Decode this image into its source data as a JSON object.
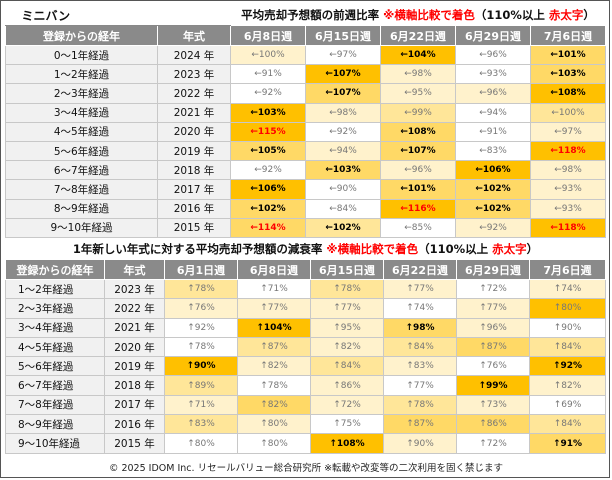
{
  "table1": {
    "name": "ミニバン",
    "title_main": "平均売却予想額の前週比率",
    "title_note": "※横軸比較で着色",
    "title_rule_open": "（110%以上",
    "title_rule_red": "赤太字",
    "title_rule_close": "）",
    "headers": [
      "登録からの経年",
      "年式",
      "6月8日週",
      "6月15日週",
      "6月22日週",
      "6月29日週",
      "7月6日週"
    ],
    "rows": [
      {
        "age": "0～1年経過",
        "year": "2024 年",
        "cells": [
          {
            "text": "←100%",
            "bold": false,
            "red": false,
            "bg": "#fff2cc"
          },
          {
            "text": "←97%",
            "bold": false,
            "red": false,
            "bg": "#ffffff"
          },
          {
            "text": "←104%",
            "bold": true,
            "red": false,
            "bg": "#ffc000"
          },
          {
            "text": "←96%",
            "bold": false,
            "red": false,
            "bg": "#ffffff"
          },
          {
            "text": "←101%",
            "bold": true,
            "red": false,
            "bg": "#ffd966"
          }
        ]
      },
      {
        "age": "1～2年経過",
        "year": "2023 年",
        "cells": [
          {
            "text": "←91%",
            "bold": false,
            "red": false,
            "bg": "#ffffff"
          },
          {
            "text": "←107%",
            "bold": true,
            "red": false,
            "bg": "#ffc000"
          },
          {
            "text": "←98%",
            "bold": false,
            "red": false,
            "bg": "#fff2cc"
          },
          {
            "text": "←93%",
            "bold": false,
            "red": false,
            "bg": "#ffffff"
          },
          {
            "text": "←103%",
            "bold": true,
            "red": false,
            "bg": "#ffd966"
          }
        ]
      },
      {
        "age": "2～3年経過",
        "year": "2022 年",
        "cells": [
          {
            "text": "←92%",
            "bold": false,
            "red": false,
            "bg": "#ffffff"
          },
          {
            "text": "←107%",
            "bold": true,
            "red": false,
            "bg": "#ffd966"
          },
          {
            "text": "←95%",
            "bold": false,
            "red": false,
            "bg": "#fff2cc"
          },
          {
            "text": "←96%",
            "bold": false,
            "red": false,
            "bg": "#fff2cc"
          },
          {
            "text": "←108%",
            "bold": true,
            "red": false,
            "bg": "#ffc000"
          }
        ]
      },
      {
        "age": "3～4年経過",
        "year": "2021 年",
        "cells": [
          {
            "text": "←103%",
            "bold": true,
            "red": false,
            "bg": "#ffc000"
          },
          {
            "text": "←98%",
            "bold": false,
            "red": false,
            "bg": "#fff2cc"
          },
          {
            "text": "←99%",
            "bold": false,
            "red": false,
            "bg": "#ffe699"
          },
          {
            "text": "←94%",
            "bold": false,
            "red": false,
            "bg": "#ffffff"
          },
          {
            "text": "←100%",
            "bold": false,
            "red": false,
            "bg": "#ffe699"
          }
        ]
      },
      {
        "age": "4～5年経過",
        "year": "2020 年",
        "cells": [
          {
            "text": "←115%",
            "bold": false,
            "red": true,
            "bg": "#ffc000"
          },
          {
            "text": "←92%",
            "bold": false,
            "red": false,
            "bg": "#ffffff"
          },
          {
            "text": "←108%",
            "bold": true,
            "red": false,
            "bg": "#ffd966"
          },
          {
            "text": "←91%",
            "bold": false,
            "red": false,
            "bg": "#ffffff"
          },
          {
            "text": "←97%",
            "bold": false,
            "red": false,
            "bg": "#fff2cc"
          }
        ]
      },
      {
        "age": "5～6年経過",
        "year": "2019 年",
        "cells": [
          {
            "text": "←105%",
            "bold": true,
            "red": false,
            "bg": "#ffd966"
          },
          {
            "text": "←94%",
            "bold": false,
            "red": false,
            "bg": "#fff2cc"
          },
          {
            "text": "←107%",
            "bold": true,
            "red": false,
            "bg": "#ffd966"
          },
          {
            "text": "←83%",
            "bold": false,
            "red": false,
            "bg": "#ffffff"
          },
          {
            "text": "←118%",
            "bold": false,
            "red": true,
            "bg": "#ffc000"
          }
        ]
      },
      {
        "age": "6～7年経過",
        "year": "2018 年",
        "cells": [
          {
            "text": "←92%",
            "bold": false,
            "red": false,
            "bg": "#ffffff"
          },
          {
            "text": "←103%",
            "bold": true,
            "red": false,
            "bg": "#ffd966"
          },
          {
            "text": "←96%",
            "bold": false,
            "red": false,
            "bg": "#fff2cc"
          },
          {
            "text": "←106%",
            "bold": true,
            "red": false,
            "bg": "#ffc000"
          },
          {
            "text": "←98%",
            "bold": false,
            "red": false,
            "bg": "#fff2cc"
          }
        ]
      },
      {
        "age": "7～8年経過",
        "year": "2017 年",
        "cells": [
          {
            "text": "←106%",
            "bold": true,
            "red": false,
            "bg": "#ffc000"
          },
          {
            "text": "←90%",
            "bold": false,
            "red": false,
            "bg": "#ffffff"
          },
          {
            "text": "←101%",
            "bold": true,
            "red": false,
            "bg": "#ffd966"
          },
          {
            "text": "←102%",
            "bold": true,
            "red": false,
            "bg": "#ffd966"
          },
          {
            "text": "←93%",
            "bold": false,
            "red": false,
            "bg": "#fff2cc"
          }
        ]
      },
      {
        "age": "8～9年経過",
        "year": "2016 年",
        "cells": [
          {
            "text": "←102%",
            "bold": true,
            "red": false,
            "bg": "#ffd966"
          },
          {
            "text": "←84%",
            "bold": false,
            "red": false,
            "bg": "#ffffff"
          },
          {
            "text": "←116%",
            "bold": false,
            "red": true,
            "bg": "#ffc000"
          },
          {
            "text": "←102%",
            "bold": true,
            "red": false,
            "bg": "#ffd966"
          },
          {
            "text": "←93%",
            "bold": false,
            "red": false,
            "bg": "#fff2cc"
          }
        ]
      },
      {
        "age": "9～10年経過",
        "year": "2015 年",
        "cells": [
          {
            "text": "←114%",
            "bold": false,
            "red": true,
            "bg": "#ffd966"
          },
          {
            "text": "←102%",
            "bold": true,
            "red": false,
            "bg": "#ffe699"
          },
          {
            "text": "←85%",
            "bold": false,
            "red": false,
            "bg": "#ffffff"
          },
          {
            "text": "←92%",
            "bold": false,
            "red": false,
            "bg": "#fff2cc"
          },
          {
            "text": "←118%",
            "bold": false,
            "red": true,
            "bg": "#ffc000"
          }
        ]
      }
    ]
  },
  "table2": {
    "title_main": "1年新しい年式に対する平均売却予想額の減衰率",
    "title_note": "※横軸比較で着色",
    "title_rule_open": "（110%以上",
    "title_rule_red": "赤太字",
    "title_rule_close": "）",
    "headers": [
      "登録からの経年",
      "年式",
      "6月1日週",
      "6月8日週",
      "6月15日週",
      "6月22日週",
      "6月29日週",
      "7月6日週"
    ],
    "rows": [
      {
        "age": "1～2年経過",
        "year": "2023 年",
        "cells": [
          {
            "text": "↑78%",
            "bold": false,
            "red": false,
            "bg": "#ffe699"
          },
          {
            "text": "↑71%",
            "bold": false,
            "red": false,
            "bg": "#ffffff"
          },
          {
            "text": "↑78%",
            "bold": false,
            "red": false,
            "bg": "#ffe699"
          },
          {
            "text": "↑77%",
            "bold": false,
            "red": false,
            "bg": "#fff2cc"
          },
          {
            "text": "↑72%",
            "bold": false,
            "red": false,
            "bg": "#ffffff"
          },
          {
            "text": "↑74%",
            "bold": false,
            "red": false,
            "bg": "#fff2cc"
          }
        ]
      },
      {
        "age": "2～3年経過",
        "year": "2022 年",
        "cells": [
          {
            "text": "↑76%",
            "bold": false,
            "red": false,
            "bg": "#fff2cc"
          },
          {
            "text": "↑77%",
            "bold": false,
            "red": false,
            "bg": "#fff2cc"
          },
          {
            "text": "↑77%",
            "bold": false,
            "red": false,
            "bg": "#fff2cc"
          },
          {
            "text": "↑74%",
            "bold": false,
            "red": false,
            "bg": "#ffffff"
          },
          {
            "text": "↑77%",
            "bold": false,
            "red": false,
            "bg": "#fff2cc"
          },
          {
            "text": "↑80%",
            "bold": false,
            "red": false,
            "bg": "#ffc000"
          }
        ]
      },
      {
        "age": "3～4年経過",
        "year": "2021 年",
        "cells": [
          {
            "text": "↑92%",
            "bold": false,
            "red": false,
            "bg": "#ffffff"
          },
          {
            "text": "↑104%",
            "bold": true,
            "red": false,
            "bg": "#ffc000"
          },
          {
            "text": "↑95%",
            "bold": false,
            "red": false,
            "bg": "#fff2cc"
          },
          {
            "text": "↑98%",
            "bold": true,
            "red": false,
            "bg": "#ffd966"
          },
          {
            "text": "↑96%",
            "bold": false,
            "red": false,
            "bg": "#fff2cc"
          },
          {
            "text": "↑90%",
            "bold": false,
            "red": false,
            "bg": "#ffffff"
          }
        ]
      },
      {
        "age": "4～5年経過",
        "year": "2020 年",
        "cells": [
          {
            "text": "↑78%",
            "bold": false,
            "red": false,
            "bg": "#ffffff"
          },
          {
            "text": "↑87%",
            "bold": false,
            "red": false,
            "bg": "#ffe699"
          },
          {
            "text": "↑82%",
            "bold": false,
            "red": false,
            "bg": "#fff2cc"
          },
          {
            "text": "↑84%",
            "bold": false,
            "red": false,
            "bg": "#ffe699"
          },
          {
            "text": "↑87%",
            "bold": false,
            "red": false,
            "bg": "#ffd966"
          },
          {
            "text": "↑84%",
            "bold": false,
            "red": false,
            "bg": "#ffe699"
          }
        ]
      },
      {
        "age": "5～6年経過",
        "year": "2019 年",
        "cells": [
          {
            "text": "↑90%",
            "bold": true,
            "red": false,
            "bg": "#ffc000"
          },
          {
            "text": "↑82%",
            "bold": false,
            "red": false,
            "bg": "#fff2cc"
          },
          {
            "text": "↑84%",
            "bold": false,
            "red": false,
            "bg": "#ffe699"
          },
          {
            "text": "↑83%",
            "bold": false,
            "red": false,
            "bg": "#fff2cc"
          },
          {
            "text": "↑76%",
            "bold": false,
            "red": false,
            "bg": "#ffffff"
          },
          {
            "text": "↑92%",
            "bold": true,
            "red": false,
            "bg": "#ffc000"
          }
        ]
      },
      {
        "age": "6～7年経過",
        "year": "2018 年",
        "cells": [
          {
            "text": "↑89%",
            "bold": false,
            "red": false,
            "bg": "#ffe699"
          },
          {
            "text": "↑78%",
            "bold": false,
            "red": false,
            "bg": "#ffffff"
          },
          {
            "text": "↑86%",
            "bold": false,
            "red": false,
            "bg": "#fff2cc"
          },
          {
            "text": "↑77%",
            "bold": false,
            "red": false,
            "bg": "#ffffff"
          },
          {
            "text": "↑99%",
            "bold": true,
            "red": false,
            "bg": "#ffc000"
          },
          {
            "text": "↑82%",
            "bold": false,
            "red": false,
            "bg": "#fff2cc"
          }
        ]
      },
      {
        "age": "7～8年経過",
        "year": "2017 年",
        "cells": [
          {
            "text": "↑71%",
            "bold": false,
            "red": false,
            "bg": "#fff2cc"
          },
          {
            "text": "↑82%",
            "bold": false,
            "red": false,
            "bg": "#ffd966"
          },
          {
            "text": "↑72%",
            "bold": false,
            "red": false,
            "bg": "#fff2cc"
          },
          {
            "text": "↑78%",
            "bold": false,
            "red": false,
            "bg": "#ffe699"
          },
          {
            "text": "↑73%",
            "bold": false,
            "red": false,
            "bg": "#fff2cc"
          },
          {
            "text": "↑69%",
            "bold": false,
            "red": false,
            "bg": "#ffffff"
          }
        ]
      },
      {
        "age": "8～9年経過",
        "year": "2016 年",
        "cells": [
          {
            "text": "↑83%",
            "bold": false,
            "red": false,
            "bg": "#ffe699"
          },
          {
            "text": "↑80%",
            "bold": false,
            "red": false,
            "bg": "#fff2cc"
          },
          {
            "text": "↑75%",
            "bold": false,
            "red": false,
            "bg": "#ffffff"
          },
          {
            "text": "↑87%",
            "bold": false,
            "red": false,
            "bg": "#ffd966"
          },
          {
            "text": "↑86%",
            "bold": false,
            "red": false,
            "bg": "#ffd966"
          },
          {
            "text": "↑84%",
            "bold": false,
            "red": false,
            "bg": "#ffe699"
          }
        ]
      },
      {
        "age": "9～10年経過",
        "year": "2015 年",
        "cells": [
          {
            "text": "↑80%",
            "bold": false,
            "red": false,
            "bg": "#ffffff"
          },
          {
            "text": "↑80%",
            "bold": false,
            "red": false,
            "bg": "#ffffff"
          },
          {
            "text": "↑108%",
            "bold": true,
            "red": false,
            "bg": "#ffc000"
          },
          {
            "text": "↑90%",
            "bold": false,
            "red": false,
            "bg": "#fff2cc"
          },
          {
            "text": "↑72%",
            "bold": false,
            "red": false,
            "bg": "#ffffff"
          },
          {
            "text": "↑91%",
            "bold": true,
            "red": false,
            "bg": "#ffd966"
          }
        ]
      }
    ]
  },
  "footer": "© 2025 IDOM Inc. リセールバリュー総合研究所 ※転載や改変等の二次利用を固く禁じます",
  "colors": {
    "header_bg": "#8a8a8a",
    "note_red": "#ff0000",
    "shade_high": "#ffc000",
    "shade_mid": "#ffd966",
    "shade_low": "#ffe699",
    "shade_min": "#fff2cc"
  },
  "chart_data": [
    {
      "type": "table",
      "title": "平均売却予想額の前週比率",
      "columns": [
        "6月8日週",
        "6月15日週",
        "6月22日週",
        "6月29日週",
        "7月6日週"
      ],
      "rows": [
        "2024 年",
        "2023 年",
        "2022 年",
        "2021 年",
        "2020 年",
        "2019 年",
        "2018 年",
        "2017 年",
        "2016 年",
        "2015 年"
      ],
      "values": [
        [
          100,
          97,
          104,
          96,
          101
        ],
        [
          91,
          107,
          98,
          93,
          103
        ],
        [
          92,
          107,
          95,
          96,
          108
        ],
        [
          103,
          98,
          99,
          94,
          100
        ],
        [
          115,
          92,
          108,
          91,
          97
        ],
        [
          105,
          94,
          107,
          83,
          118
        ],
        [
          92,
          103,
          96,
          106,
          98
        ],
        [
          106,
          90,
          101,
          102,
          93
        ],
        [
          102,
          84,
          116,
          102,
          93
        ],
        [
          114,
          102,
          85,
          92,
          118
        ]
      ]
    },
    {
      "type": "table",
      "title": "1年新しい年式に対する平均売却予想額の減衰率",
      "columns": [
        "6月1日週",
        "6月8日週",
        "6月15日週",
        "6月22日週",
        "6月29日週",
        "7月6日週"
      ],
      "rows": [
        "2023 年",
        "2022 年",
        "2021 年",
        "2020 年",
        "2019 年",
        "2018 年",
        "2017 年",
        "2016 年",
        "2015 年"
      ],
      "values": [
        [
          78,
          71,
          78,
          77,
          72,
          74
        ],
        [
          76,
          77,
          77,
          74,
          77,
          80
        ],
        [
          92,
          104,
          95,
          98,
          96,
          90
        ],
        [
          78,
          87,
          82,
          84,
          87,
          84
        ],
        [
          90,
          82,
          84,
          83,
          76,
          92
        ],
        [
          89,
          78,
          86,
          77,
          99,
          82
        ],
        [
          71,
          82,
          72,
          78,
          73,
          69
        ],
        [
          83,
          80,
          75,
          87,
          86,
          84
        ],
        [
          80,
          80,
          108,
          90,
          72,
          91
        ]
      ]
    }
  ]
}
